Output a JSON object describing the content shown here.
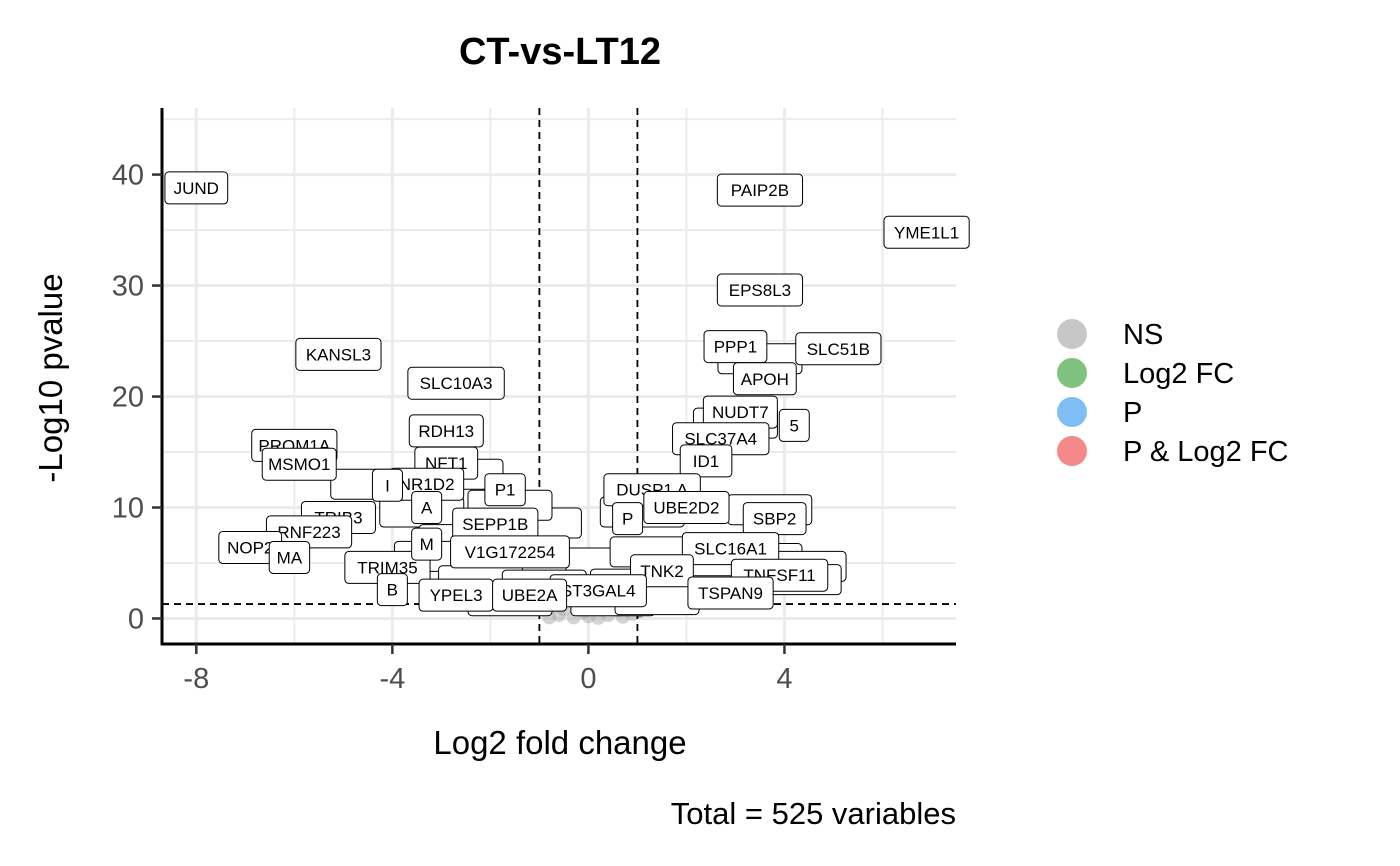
{
  "chart_data": {
    "type": "scatter",
    "title": "CT-vs-LT12",
    "xlabel": "Log2 fold change",
    "ylabel": "-Log10 pvalue",
    "caption": "Total = 525 variables",
    "xlim": [
      -8.7,
      7.5
    ],
    "ylim": [
      -2.3,
      46
    ],
    "xticks": [
      -8,
      -4,
      0,
      4
    ],
    "xtick_labels": [
      "-8",
      "-4",
      "0",
      "4"
    ],
    "yticks": [
      0,
      10,
      20,
      30,
      40
    ],
    "ytick_labels": [
      "0",
      "10",
      "20",
      "30",
      "40"
    ],
    "grid": true,
    "fc_cutoff": 1,
    "p_cutoff_log10": 1.3,
    "legend": {
      "position": "right",
      "items": [
        {
          "label": "NS",
          "color": "#a9a9a9"
        },
        {
          "label": "Log2 FC",
          "color": "#3aa23a"
        },
        {
          "label": "P",
          "color": "#3a9af0"
        },
        {
          "label": "P & Log2 FC",
          "color": "#f04848"
        }
      ]
    },
    "labeled_points": [
      {
        "label": "JUND",
        "x": -8.0,
        "y": 38.8
      },
      {
        "label": "PAIP2B",
        "x": 3.5,
        "y": 38.6
      },
      {
        "label": "YME1L1",
        "x": 6.9,
        "y": 34.8
      },
      {
        "label": "EPS8L3",
        "x": 3.5,
        "y": 29.6
      },
      {
        "label": "KANSL3",
        "x": -5.1,
        "y": 23.8
      },
      {
        "label": "SLC10A3",
        "x": -2.7,
        "y": 21.2
      },
      {
        "label": "PPP1",
        "x": 3.0,
        "y": 24.5
      },
      {
        "label": "SLC51B",
        "x": 5.1,
        "y": 24.3
      },
      {
        "label": "APOH",
        "x": 3.6,
        "y": 21.6
      },
      {
        "label": "NUDT7",
        "x": 3.1,
        "y": 18.6
      },
      {
        "label": "5",
        "x": 4.2,
        "y": 17.4
      },
      {
        "label": "SLC37A4",
        "x": 2.7,
        "y": 16.2
      },
      {
        "label": "RDH13",
        "x": -2.9,
        "y": 16.9
      },
      {
        "label": "PROM1A",
        "x": -6.0,
        "y": 15.6
      },
      {
        "label": "MSMO1",
        "x": -5.9,
        "y": 13.9
      },
      {
        "label": "NFT1",
        "x": -2.9,
        "y": 14.0
      },
      {
        "label": "ID1",
        "x": 2.4,
        "y": 14.2
      },
      {
        "label": "NR1D2",
        "x": -3.3,
        "y": 12.1
      },
      {
        "label": "I",
        "x": -4.1,
        "y": 12.0
      },
      {
        "label": "P1",
        "x": -1.7,
        "y": 11.6
      },
      {
        "label": "DUSP1 A",
        "x": 1.3,
        "y": 11.6
      },
      {
        "label": "UBE2D2",
        "x": 2.0,
        "y": 10.0
      },
      {
        "label": "SBP2",
        "x": 3.8,
        "y": 9.0
      },
      {
        "label": "TRIB3",
        "x": -5.1,
        "y": 9.1
      },
      {
        "label": "A",
        "x": -3.3,
        "y": 10.0
      },
      {
        "label": "P",
        "x": 0.8,
        "y": 9.0
      },
      {
        "label": "SEPP1B",
        "x": -1.9,
        "y": 8.5
      },
      {
        "label": "RNF223",
        "x": -5.7,
        "y": 7.8
      },
      {
        "label": "NOP2",
        "x": -6.9,
        "y": 6.4
      },
      {
        "label": "V1G172254",
        "x": -1.6,
        "y": 6.0
      },
      {
        "label": "SLC16A1",
        "x": 2.9,
        "y": 6.3
      },
      {
        "label": "MA",
        "x": -6.1,
        "y": 5.5
      },
      {
        "label": "TRIM35",
        "x": -4.1,
        "y": 4.6
      },
      {
        "label": "TNK2",
        "x": 1.5,
        "y": 4.3
      },
      {
        "label": "TNFSF11",
        "x": 3.9,
        "y": 3.9
      },
      {
        "label": "ST3GAL4",
        "x": 0.2,
        "y": 2.5
      },
      {
        "label": "TSPAN9",
        "x": 2.9,
        "y": 2.3
      },
      {
        "label": "YPEL3",
        "x": -2.7,
        "y": 2.1
      },
      {
        "label": "UBE2A",
        "x": -1.2,
        "y": 2.1
      },
      {
        "label": "B",
        "x": -4.0,
        "y": 2.6
      },
      {
        "label": "M",
        "x": -3.3,
        "y": 6.7
      }
    ],
    "clutter_boxes": [
      {
        "x": -4.4,
        "y": 12.1
      },
      {
        "x": -3.0,
        "y": 11.2
      },
      {
        "x": -3.4,
        "y": 9.6
      },
      {
        "x": -1.0,
        "y": 8.6
      },
      {
        "x": -2.6,
        "y": 7.1
      },
      {
        "x": -3.1,
        "y": 5.6
      },
      {
        "x": -1.9,
        "y": 4.9
      },
      {
        "x": -0.5,
        "y": 4.3
      },
      {
        "x": 0.4,
        "y": 5.0
      },
      {
        "x": -2.2,
        "y": 3.4
      },
      {
        "x": -0.9,
        "y": 3.0
      },
      {
        "x": 0.9,
        "y": 3.1
      },
      {
        "x": -1.6,
        "y": 1.6
      },
      {
        "x": 0.5,
        "y": 1.6
      },
      {
        "x": 1.4,
        "y": 1.7
      },
      {
        "x": 3.7,
        "y": 9.8
      },
      {
        "x": 3.5,
        "y": 5.4
      },
      {
        "x": 4.4,
        "y": 4.7
      },
      {
        "x": 4.3,
        "y": 3.5
      },
      {
        "x": 2.6,
        "y": 5.2
      },
      {
        "x": 1.3,
        "y": 6.0
      },
      {
        "x": 1.1,
        "y": 9.6
      },
      {
        "x": 3.0,
        "y": 17.6
      },
      {
        "x": 3.5,
        "y": 23.4
      },
      {
        "x": -2.6,
        "y": 13.0
      },
      {
        "x": -1.6,
        "y": 10.2
      }
    ],
    "ns_points": [
      {
        "x": -0.6,
        "y": 0.3
      },
      {
        "x": -0.3,
        "y": 0.1
      },
      {
        "x": 0.0,
        "y": 0.2
      },
      {
        "x": 0.2,
        "y": 0.05
      },
      {
        "x": 0.4,
        "y": 0.3
      },
      {
        "x": 0.7,
        "y": 0.15
      },
      {
        "x": -0.8,
        "y": 0.1
      },
      {
        "x": 0.9,
        "y": 0.4
      },
      {
        "x": -0.1,
        "y": 0.6
      },
      {
        "x": 0.1,
        "y": 0.9
      },
      {
        "x": -0.5,
        "y": 0.8
      },
      {
        "x": 0.6,
        "y": 0.7
      }
    ]
  }
}
